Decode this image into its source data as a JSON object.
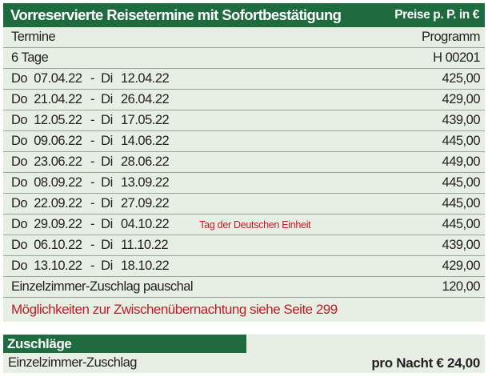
{
  "table1": {
    "header_left": "Vorreservierte Reisetermine mit Sofortbestätigung",
    "header_right": "Preise p. P. in €",
    "sub1_left": "Termine",
    "sub1_right": "Programm",
    "sub2_left": "6 Tage",
    "sub2_right": "H 00201",
    "rows": [
      {
        "d1": "Do  07.04.22",
        "sep": "-  Di",
        "d2": "12.04.22",
        "price": "425,00",
        "note": ""
      },
      {
        "d1": "Do  21.04.22",
        "sep": "-  Di",
        "d2": "26.04.22",
        "price": "429,00",
        "note": ""
      },
      {
        "d1": "Do  12.05.22",
        "sep": "-  Di",
        "d2": "17.05.22",
        "price": "439,00",
        "note": ""
      },
      {
        "d1": "Do  09.06.22",
        "sep": "-  Di",
        "d2": "14.06.22",
        "price": "445,00",
        "note": ""
      },
      {
        "d1": "Do  23.06.22",
        "sep": "-  Di",
        "d2": "28.06.22",
        "price": "449,00",
        "note": ""
      },
      {
        "d1": "Do  08.09.22",
        "sep": "-  Di",
        "d2": "13.09.22",
        "price": "445,00",
        "note": ""
      },
      {
        "d1": "Do  22.09.22",
        "sep": "-  Di",
        "d2": "27.09.22",
        "price": "445,00",
        "note": ""
      },
      {
        "d1": "Do  29.09.22",
        "sep": "-  Di",
        "d2": "04.10.22",
        "price": "445,00",
        "note": "Tag der Deutschen Einheit"
      },
      {
        "d1": "Do  06.10.22",
        "sep": "-  Di",
        "d2": "11.10.22",
        "price": "439,00",
        "note": ""
      },
      {
        "d1": "Do  13.10.22",
        "sep": "-  Di",
        "d2": "18.10.22",
        "price": "429,00",
        "note": ""
      }
    ],
    "surcharge_label": "Einzelzimmer-Zuschlag pauschal",
    "surcharge_price": "120,00",
    "red_note": "Möglichkeiten zur Zwischenübernachtung siehe Seite 299"
  },
  "table2": {
    "header": "Zuschläge",
    "label": "Einzelzimmer-Zuschlag",
    "value": "pro Nacht € 24,00"
  },
  "colors": {
    "header_green": "#1f6b40",
    "row_bg": "#e7efe4",
    "note_red": "#c41a25"
  }
}
